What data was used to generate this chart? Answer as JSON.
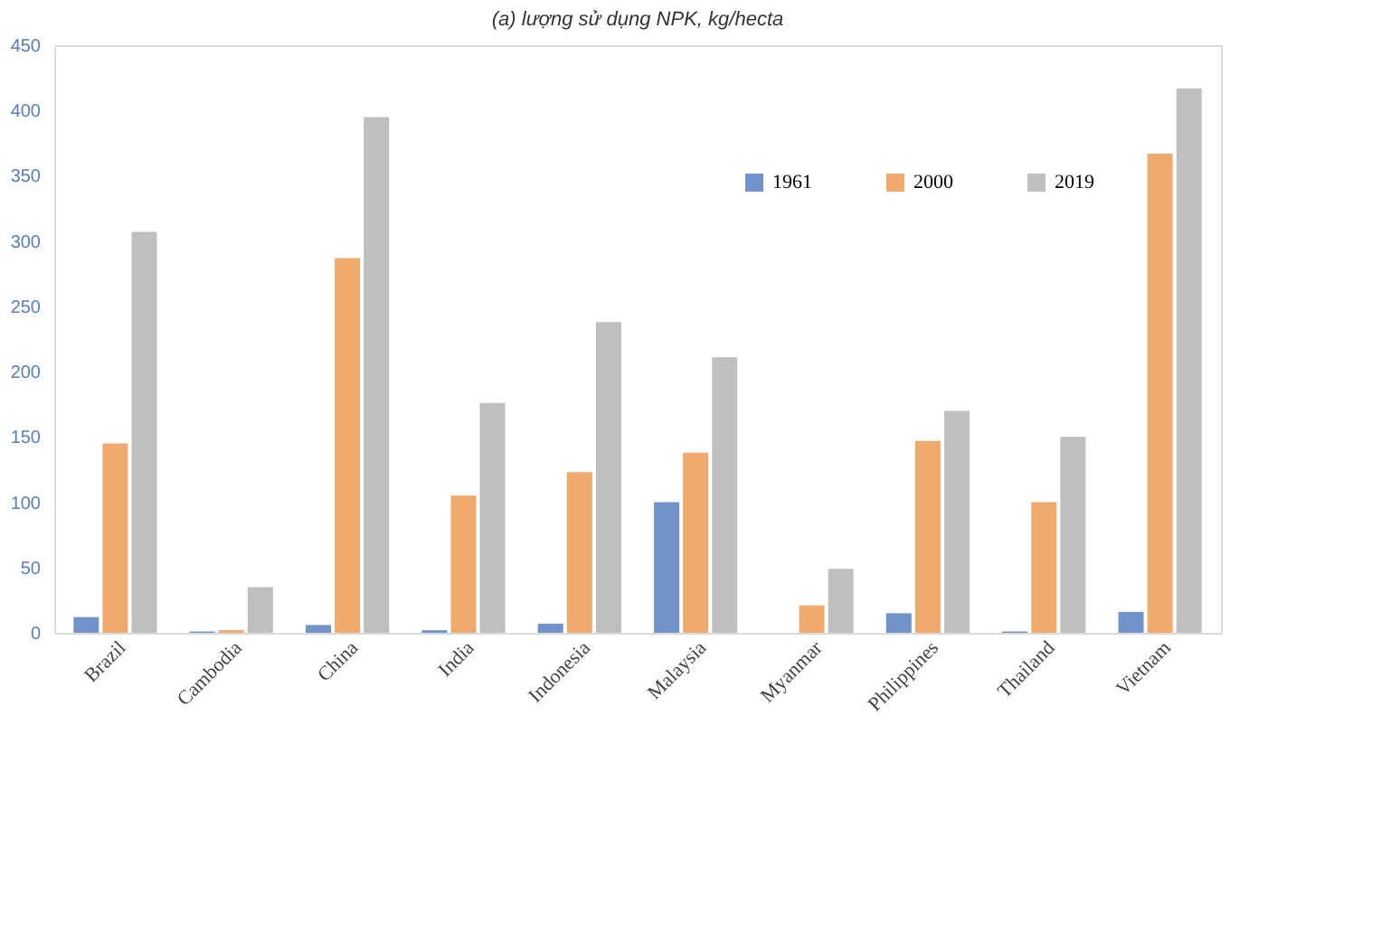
{
  "chart_data": {
    "type": "bar",
    "title": "(a) lượng sử dụng NPK, kg/hecta",
    "categories": [
      "Brazil",
      "Cambodia",
      "China",
      "India",
      "Indonesia",
      "Malaysia",
      "Myanmar",
      "Philippines",
      "Thailand",
      "Vietnam"
    ],
    "series": [
      {
        "name": "1961",
        "color": "#7293c9",
        "values": [
          12,
          1,
          6,
          2,
          7,
          100,
          0,
          15,
          1,
          16
        ]
      },
      {
        "name": "2000",
        "color": "#f0aa6e",
        "values": [
          145,
          2,
          287,
          105,
          123,
          138,
          21,
          147,
          100,
          367
        ]
      },
      {
        "name": "2019",
        "color": "#bfbfbf",
        "values": [
          307,
          35,
          395,
          176,
          238,
          211,
          49,
          170,
          150,
          417
        ]
      }
    ],
    "ylim": [
      0,
      450
    ],
    "yticks": [
      0,
      50,
      100,
      150,
      200,
      250,
      300,
      350,
      400,
      450
    ],
    "grid": false,
    "legend": "top right"
  }
}
